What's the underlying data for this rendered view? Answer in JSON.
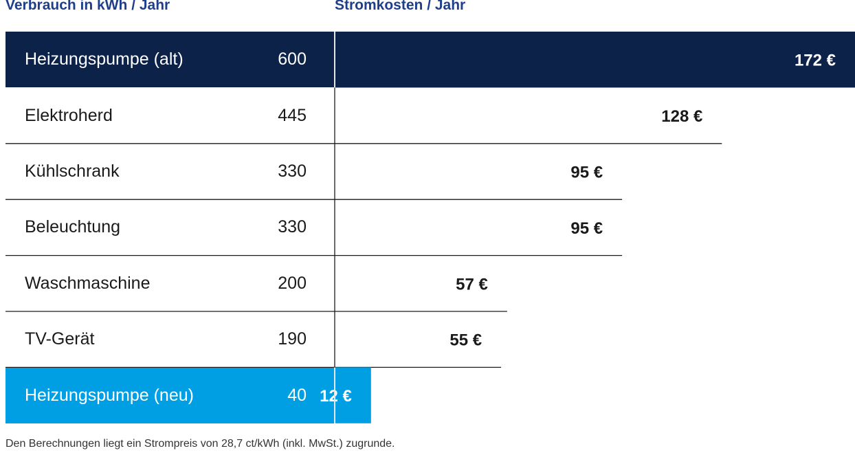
{
  "header": {
    "left": "Verbrauch in kWh / Jahr",
    "right": "Stromkosten / Jahr"
  },
  "colors": {
    "header_text": "#1f3f8a",
    "highlight_old": "#0d2249",
    "highlight_new": "#009fe3",
    "divider": "#1a1a1a"
  },
  "chart_data": {
    "type": "bar",
    "orientation": "horizontal",
    "categories": [
      "Heizungspumpe (alt)",
      "Elektroherd",
      "Kühlschrank",
      "Beleuchtung",
      "Waschmaschine",
      "TV-Gerät",
      "Heizungspumpe (neu)"
    ],
    "kwh_labels": [
      "600",
      "445",
      "330",
      "330",
      "200",
      "190",
      "40"
    ],
    "values": [
      172,
      128,
      95,
      95,
      57,
      55,
      12
    ],
    "value_labels": [
      "172 €",
      "128 €",
      "95 €",
      "95 €",
      "57 €",
      "55 €",
      "12 €"
    ],
    "highlight": [
      "dark",
      "",
      "",
      "",
      "",
      "",
      "light"
    ],
    "xlim": [
      0,
      172
    ]
  },
  "footnote": "Den Berechnungen liegt ein Strompreis von 28,7 ct/kWh (inkl. MwSt.) zugrunde."
}
